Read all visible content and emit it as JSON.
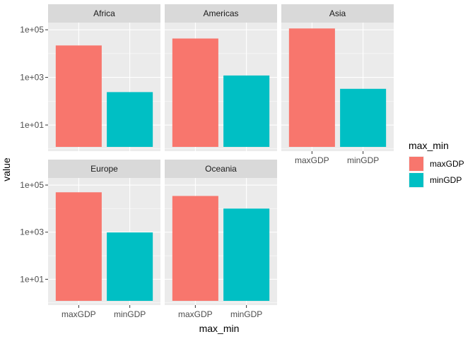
{
  "chart_data": {
    "type": "bar",
    "facet_by": "continent",
    "facets": [
      {
        "name": "Africa",
        "values": {
          "maxGDP": 21951.2,
          "minGDP": 241.2
        }
      },
      {
        "name": "Americas",
        "values": {
          "maxGDP": 42951.7,
          "minGDP": 1201.6
        }
      },
      {
        "name": "Asia",
        "values": {
          "maxGDP": 113523.1,
          "minGDP": 331.0
        }
      },
      {
        "name": "Europe",
        "values": {
          "maxGDP": 49357.2,
          "minGDP": 973.5
        }
      },
      {
        "name": "Oceania",
        "values": {
          "maxGDP": 34435.4,
          "minGDP": 10039.6
        }
      }
    ],
    "categories": [
      "maxGDP",
      "minGDP"
    ],
    "xlabel": "max_min",
    "ylabel": "value",
    "y_scale": "log10",
    "ylim": [
      0.8,
      200000
    ],
    "y_ticks": [
      10,
      1000,
      100000
    ],
    "y_tick_labels": [
      "1e+01",
      "1e+03",
      "1e+05"
    ],
    "legend": {
      "title": "max_min",
      "position": "right",
      "entries": [
        {
          "label": "maxGDP",
          "color": "#F8766D"
        },
        {
          "label": "minGDP",
          "color": "#00BFC4"
        }
      ]
    },
    "colors": {
      "panel": "#EBEBEB",
      "strip": "#D9D9D9",
      "grid": "#FFFFFF"
    }
  }
}
